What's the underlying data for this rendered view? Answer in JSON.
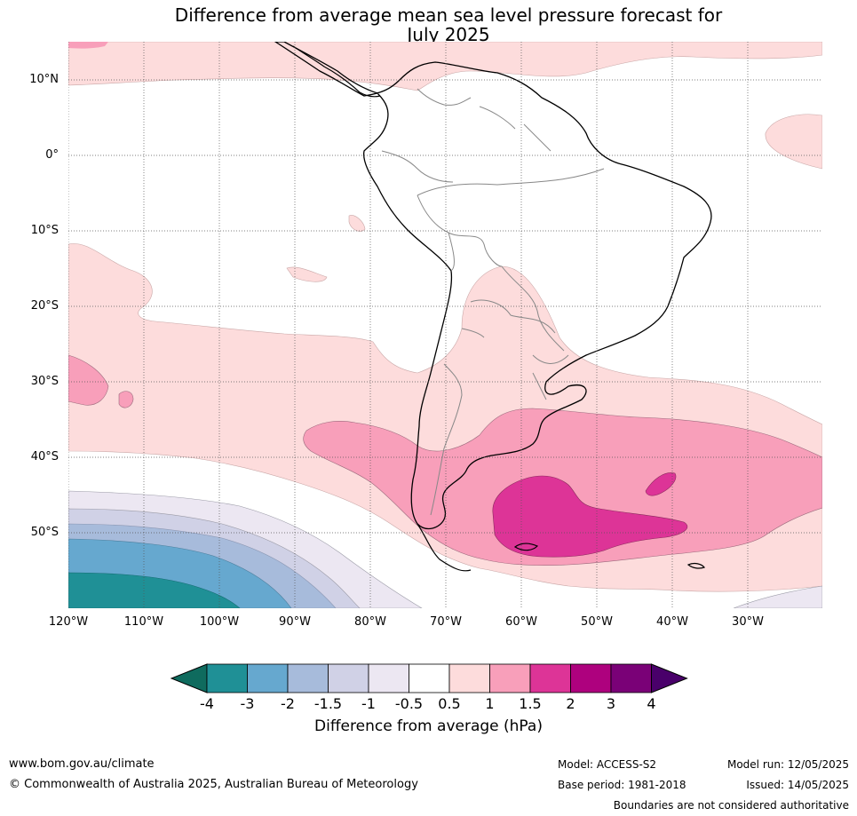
{
  "title_line1": "Difference from average mean sea level pressure forecast for",
  "title_line2": "July 2025",
  "lat_labels": [
    "10°N",
    "0°",
    "10°S",
    "20°S",
    "30°S",
    "40°S",
    "50°S"
  ],
  "lon_labels": [
    "120°W",
    "110°W",
    "100°W",
    "90°W",
    "80°W",
    "70°W",
    "60°W",
    "50°W",
    "40°W",
    "30°W"
  ],
  "colorbar": {
    "ticks": [
      "-4",
      "-3",
      "-2",
      "-1.5",
      "-1",
      "-0.5",
      "0.5",
      "1",
      "1.5",
      "2",
      "3",
      "4"
    ],
    "colors": [
      "#0f6b5e",
      "#1f9096",
      "#66a8cf",
      "#a7bbdb",
      "#d0d1e6",
      "#ece7f2",
      "#ffffff",
      "#fddcdc",
      "#f89fba",
      "#dd3497",
      "#ae017e",
      "#7a0177",
      "#49006a"
    ],
    "label": "Difference from average (hPa)"
  },
  "footer": {
    "url": "www.bom.gov.au/climate",
    "copyright": "© Commonwealth of Australia 2025, Australian Bureau of Meteorology",
    "model": "Model: ACCESS-S2",
    "base_period": "Base period: 1981-2018",
    "model_run": "Model run: 12/05/2025",
    "issued": "Issued: 14/05/2025",
    "disclaimer": "Boundaries are not considered authoritative"
  }
}
